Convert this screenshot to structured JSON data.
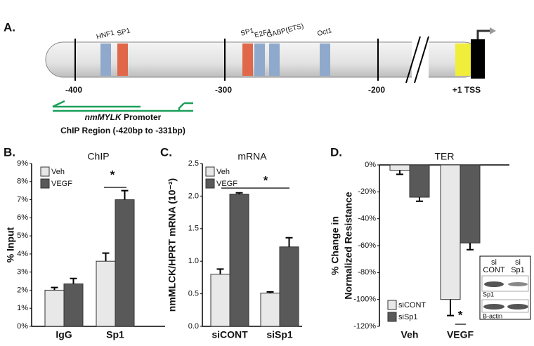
{
  "diagram": {
    "panel_label": "A.",
    "sites": [
      "HNF1",
      "SP1",
      "SP1",
      "E2F4",
      "GABP(ETS)",
      "Oct1"
    ],
    "positions": [
      "-400",
      "-300",
      "-200",
      "+1 TSS"
    ],
    "region_gene": "nmMYLK",
    "region_title_rest": "Promoter",
    "region_range": "ChIP Region (-420bp to -331bp)"
  },
  "chart_data": [
    {
      "type": "bar",
      "panel_label": "B.",
      "title": "ChIP",
      "y_label": [
        "% Input"
      ],
      "categories": [
        "IgG",
        "Sp1"
      ],
      "series": [
        {
          "name": "Veh",
          "color": "#e8e8e8",
          "values": [
            2.0,
            3.6
          ],
          "errors": [
            0.15,
            0.45
          ]
        },
        {
          "name": "VEGF",
          "color": "#595959",
          "values": [
            2.35,
            7.0
          ],
          "errors": [
            0.3,
            0.5
          ]
        }
      ],
      "ylim": [
        0,
        9
      ],
      "yticks": [
        {
          "value": 0,
          "label": "0%"
        },
        {
          "value": 1,
          "label": "1%"
        },
        {
          "value": 2,
          "label": "2%"
        },
        {
          "value": 3,
          "label": "3%"
        },
        {
          "value": 4,
          "label": "4%"
        },
        {
          "value": 5,
          "label": "5%"
        },
        {
          "value": 6,
          "label": "6%"
        },
        {
          "value": 7,
          "label": "7%"
        },
        {
          "value": 8,
          "label": "8%"
        },
        {
          "value": 9,
          "label": "9%"
        }
      ],
      "annotation": "*"
    },
    {
      "type": "bar",
      "panel_label": "C.",
      "title": "mRNA",
      "y_label": [
        "nmMLCK/HPRT mRNA (10⁻²)"
      ],
      "categories": [
        "siCONT",
        "siSp1"
      ],
      "series": [
        {
          "name": "Veh",
          "color": "#e8e8e8",
          "values": [
            0.8,
            0.51
          ],
          "errors": [
            0.08,
            0.02
          ]
        },
        {
          "name": "VEGF",
          "color": "#595959",
          "values": [
            2.03,
            1.22
          ],
          "errors": [
            0.02,
            0.14
          ]
        }
      ],
      "ylim": [
        0,
        2.5
      ],
      "yticks": [
        {
          "value": 0,
          "label": "0.0"
        },
        0.5,
        {
          "value": 1,
          "label": "1.0"
        },
        1.5,
        {
          "value": 2,
          "label": "2.0"
        },
        2.5
      ],
      "annotation": "*"
    },
    {
      "type": "bar",
      "panel_label": "D.",
      "title": "TER",
      "y_label": [
        "% Change in",
        "Normalized Resistance"
      ],
      "categories": [
        "Veh",
        "VEGF"
      ],
      "series": [
        {
          "name": "siCONT",
          "color": "#e8e8e8",
          "values": [
            -4,
            -100
          ],
          "errors": [
            3,
            12
          ]
        },
        {
          "name": "siSp1",
          "color": "#595959",
          "values": [
            -24,
            -58
          ],
          "errors": [
            3,
            5
          ]
        }
      ],
      "ylim": [
        -120,
        0
      ],
      "yticks": [
        {
          "value": -120,
          "label": "-120%"
        },
        {
          "value": -100,
          "label": "-100%"
        },
        {
          "value": -80,
          "label": "-80%"
        },
        {
          "value": -60,
          "label": "-60%"
        },
        {
          "value": -40,
          "label": "-40%"
        },
        {
          "value": -20,
          "label": "-20%"
        },
        {
          "value": 0,
          "label": "0%"
        }
      ],
      "annotation": "*",
      "inset": {
        "lanes": [
          [
            "si",
            "CONT"
          ],
          [
            "si",
            "Sp1"
          ]
        ],
        "rows": [
          "Sp1",
          "B-actin"
        ]
      }
    }
  ]
}
